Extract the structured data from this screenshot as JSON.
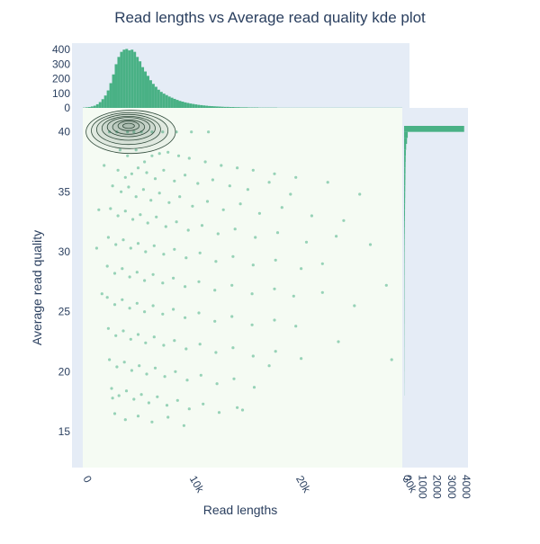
{
  "chart_data": {
    "type": "scatter",
    "title": "Read lengths vs Average read quality kde plot",
    "xlabel": "Read lengths",
    "ylabel": "Average read quality",
    "xlim": [
      0,
      30000
    ],
    "ylim": [
      12,
      42
    ],
    "x_ticks": [
      {
        "value": 0,
        "label": "0"
      },
      {
        "value": 10000,
        "label": "10k"
      },
      {
        "value": 20000,
        "label": "20k"
      },
      {
        "value": 30000,
        "label": "30k"
      }
    ],
    "y_ticks": [
      {
        "value": 15,
        "label": "15"
      },
      {
        "value": 20,
        "label": "20"
      },
      {
        "value": 25,
        "label": "25"
      },
      {
        "value": 30,
        "label": "30"
      },
      {
        "value": 35,
        "label": "35"
      },
      {
        "value": 40,
        "label": "40"
      }
    ],
    "colors": {
      "marker": "#49b185",
      "contour": "#2f4a3a",
      "plot_bg": "#f5fbf3",
      "marginal_bg": "#e5ecf6",
      "text": "#2a3f5f"
    },
    "scatter_points": [
      [
        4200,
        40
      ],
      [
        4800,
        40
      ],
      [
        5500,
        40
      ],
      [
        6500,
        40
      ],
      [
        7500,
        40
      ],
      [
        8800,
        40
      ],
      [
        10200,
        40
      ],
      [
        11800,
        40
      ],
      [
        3200,
        40
      ],
      [
        2500,
        40
      ],
      [
        3500,
        38.5
      ],
      [
        4200,
        38
      ],
      [
        5000,
        38.5
      ],
      [
        5800,
        37.5
      ],
      [
        6500,
        38
      ],
      [
        7200,
        38.2
      ],
      [
        8000,
        38.3
      ],
      [
        9000,
        38
      ],
      [
        10000,
        37.8
      ],
      [
        11500,
        37.5
      ],
      [
        13000,
        37.2
      ],
      [
        14500,
        37
      ],
      [
        16000,
        36.8
      ],
      [
        18000,
        36.5
      ],
      [
        20000,
        36.2
      ],
      [
        3300,
        36.8
      ],
      [
        4000,
        36.2
      ],
      [
        4600,
        36.5
      ],
      [
        5200,
        37
      ],
      [
        6000,
        36.6
      ],
      [
        6800,
        36.1
      ],
      [
        7600,
        36.8
      ],
      [
        8600,
        35.9
      ],
      [
        9600,
        36.4
      ],
      [
        10800,
        35.7
      ],
      [
        12200,
        36
      ],
      [
        13800,
        35.5
      ],
      [
        15500,
        35.2
      ],
      [
        17500,
        35.8
      ],
      [
        19500,
        34.8
      ],
      [
        2800,
        35.5
      ],
      [
        3600,
        35
      ],
      [
        4300,
        35.4
      ],
      [
        5000,
        34.6
      ],
      [
        5700,
        35.2
      ],
      [
        6400,
        34.3
      ],
      [
        7200,
        34.9
      ],
      [
        8100,
        34.1
      ],
      [
        9100,
        34.6
      ],
      [
        10300,
        33.8
      ],
      [
        11700,
        34.2
      ],
      [
        13200,
        33.5
      ],
      [
        14800,
        34
      ],
      [
        16600,
        33.2
      ],
      [
        18700,
        33.7
      ],
      [
        21500,
        33
      ],
      [
        24500,
        32.6
      ],
      [
        2600,
        33.6
      ],
      [
        3300,
        33
      ],
      [
        4000,
        33.4
      ],
      [
        4700,
        32.7
      ],
      [
        5400,
        33.1
      ],
      [
        6100,
        32.4
      ],
      [
        6900,
        32.9
      ],
      [
        7800,
        32.1
      ],
      [
        8800,
        32.5
      ],
      [
        9900,
        31.8
      ],
      [
        11200,
        32.2
      ],
      [
        12700,
        31.5
      ],
      [
        14300,
        31.9
      ],
      [
        16200,
        31.2
      ],
      [
        18300,
        31.6
      ],
      [
        21000,
        30.8
      ],
      [
        23800,
        31.3
      ],
      [
        2400,
        31.2
      ],
      [
        3100,
        30.6
      ],
      [
        3800,
        31
      ],
      [
        4500,
        30.3
      ],
      [
        5200,
        30.7
      ],
      [
        5900,
        30
      ],
      [
        6700,
        30.5
      ],
      [
        7600,
        29.8
      ],
      [
        8600,
        30.2
      ],
      [
        9700,
        29.5
      ],
      [
        11000,
        29.9
      ],
      [
        12500,
        29.2
      ],
      [
        14100,
        29.6
      ],
      [
        16000,
        28.9
      ],
      [
        18100,
        29.3
      ],
      [
        20500,
        28.6
      ],
      [
        22500,
        29
      ],
      [
        2300,
        28.8
      ],
      [
        3000,
        28.2
      ],
      [
        3700,
        28.6
      ],
      [
        4400,
        27.9
      ],
      [
        5100,
        28.3
      ],
      [
        5800,
        27.6
      ],
      [
        6600,
        28.1
      ],
      [
        7500,
        27.4
      ],
      [
        8500,
        27.8
      ],
      [
        9600,
        27.1
      ],
      [
        10900,
        27.5
      ],
      [
        12400,
        26.8
      ],
      [
        14000,
        27.2
      ],
      [
        15900,
        26.5
      ],
      [
        18000,
        26.9
      ],
      [
        19800,
        26.3
      ],
      [
        22500,
        26.6
      ],
      [
        2300,
        26.2
      ],
      [
        3000,
        25.6
      ],
      [
        3700,
        26
      ],
      [
        4400,
        25.3
      ],
      [
        5100,
        25.7
      ],
      [
        5800,
        25
      ],
      [
        6600,
        25.5
      ],
      [
        7500,
        24.8
      ],
      [
        8500,
        25.2
      ],
      [
        9600,
        24.5
      ],
      [
        10900,
        24.9
      ],
      [
        12400,
        24.2
      ],
      [
        14000,
        24.6
      ],
      [
        15900,
        23.9
      ],
      [
        18000,
        24.3
      ],
      [
        20000,
        23.8
      ],
      [
        2400,
        23.6
      ],
      [
        3100,
        23
      ],
      [
        3800,
        23.4
      ],
      [
        4500,
        22.7
      ],
      [
        5200,
        23.1
      ],
      [
        5900,
        22.4
      ],
      [
        6700,
        22.9
      ],
      [
        7600,
        22.2
      ],
      [
        8600,
        22.6
      ],
      [
        9700,
        21.9
      ],
      [
        11000,
        22.3
      ],
      [
        12500,
        21.6
      ],
      [
        14100,
        22
      ],
      [
        16000,
        21.3
      ],
      [
        18100,
        21.7
      ],
      [
        20500,
        21.1
      ],
      [
        2500,
        21
      ],
      [
        3200,
        20.4
      ],
      [
        3900,
        20.8
      ],
      [
        4600,
        20.1
      ],
      [
        5300,
        20.5
      ],
      [
        6000,
        19.8
      ],
      [
        6800,
        20.3
      ],
      [
        7700,
        19.6
      ],
      [
        8700,
        20
      ],
      [
        9800,
        19.3
      ],
      [
        11100,
        19.7
      ],
      [
        12600,
        19
      ],
      [
        14200,
        19.4
      ],
      [
        16100,
        18.7
      ],
      [
        2700,
        18.6
      ],
      [
        3400,
        18
      ],
      [
        4100,
        18.4
      ],
      [
        4800,
        17.7
      ],
      [
        5500,
        18.1
      ],
      [
        6200,
        17.4
      ],
      [
        7000,
        17.9
      ],
      [
        7900,
        17.2
      ],
      [
        8900,
        17.6
      ],
      [
        10000,
        16.9
      ],
      [
        11300,
        17.3
      ],
      [
        12800,
        16.6
      ],
      [
        14500,
        17
      ],
      [
        3000,
        16.5
      ],
      [
        4000,
        16
      ],
      [
        5200,
        16.3
      ],
      [
        6500,
        15.8
      ],
      [
        8000,
        16.2
      ],
      [
        2800,
        17.8
      ],
      [
        9500,
        15.5
      ],
      [
        15000,
        16.8
      ],
      [
        17500,
        20.5
      ],
      [
        26000,
        34.8
      ],
      [
        28500,
        27.2
      ],
      [
        29000,
        21
      ],
      [
        25500,
        25.5
      ],
      [
        24000,
        22.5
      ],
      [
        23000,
        35.8
      ],
      [
        27000,
        30.6
      ],
      [
        2000,
        37.2
      ],
      [
        1500,
        33.5
      ],
      [
        1300,
        30.3
      ],
      [
        1800,
        26.5
      ]
    ],
    "contour_ellipses": [
      {
        "cx": 4500,
        "cy": 40,
        "rx": 4200,
        "ry": 1.8
      },
      {
        "cx": 4400,
        "cy": 40.1,
        "rx": 3600,
        "ry": 1.5
      },
      {
        "cx": 4300,
        "cy": 40.2,
        "rx": 3000,
        "ry": 1.25
      },
      {
        "cx": 4300,
        "cy": 40.3,
        "rx": 2500,
        "ry": 1.0
      },
      {
        "cx": 4300,
        "cy": 40.4,
        "rx": 2000,
        "ry": 0.8
      },
      {
        "cx": 4300,
        "cy": 40.4,
        "rx": 1500,
        "ry": 0.6
      },
      {
        "cx": 4300,
        "cy": 40.5,
        "rx": 1000,
        "ry": 0.4
      },
      {
        "cx": 4300,
        "cy": 40.5,
        "rx": 550,
        "ry": 0.22
      }
    ],
    "x_marginal": {
      "ylim": [
        0,
        420
      ],
      "y_ticks": [
        {
          "value": 0,
          "label": "0"
        },
        {
          "value": 100,
          "label": "100"
        },
        {
          "value": 200,
          "label": "200"
        },
        {
          "value": 300,
          "label": "300"
        },
        {
          "value": 400,
          "label": "400"
        }
      ],
      "bin_width": 250,
      "counts": [
        2,
        4,
        6,
        10,
        15,
        25,
        40,
        60,
        85,
        120,
        170,
        230,
        300,
        350,
        385,
        400,
        405,
        395,
        400,
        385,
        350,
        320,
        280,
        250,
        220,
        190,
        165,
        145,
        125,
        110,
        98,
        88,
        78,
        70,
        62,
        55,
        48,
        43,
        38,
        34,
        30,
        27,
        24,
        21,
        19,
        17,
        15,
        13,
        12,
        11,
        10,
        9,
        8,
        7,
        7,
        6,
        6,
        5,
        5,
        4,
        4,
        4,
        3,
        3,
        3,
        3,
        2,
        2,
        2,
        2,
        2,
        2,
        2,
        1,
        1,
        1,
        1,
        1,
        1,
        1,
        1,
        1,
        1,
        1,
        1,
        1,
        1,
        1,
        1,
        1,
        1,
        1,
        1,
        1,
        1,
        1,
        1,
        1,
        1,
        1,
        1,
        1,
        1,
        1,
        1,
        1,
        1,
        1,
        1,
        1,
        1,
        1,
        1,
        1,
        1,
        1,
        1,
        1,
        1,
        1
      ]
    },
    "y_marginal": {
      "xlim": [
        0,
        4300
      ],
      "x_ticks": [
        {
          "value": 0,
          "label": "0"
        },
        {
          "value": 1000,
          "label": "1000"
        },
        {
          "value": 2000,
          "label": "2000"
        },
        {
          "value": 3000,
          "label": "3000"
        },
        {
          "value": 4000,
          "label": "4000"
        }
      ],
      "bins": [
        {
          "y0": 40,
          "y1": 40.5,
          "count": 4100
        },
        {
          "y0": 39.5,
          "y1": 40,
          "count": 250
        },
        {
          "y0": 39,
          "y1": 39.5,
          "count": 200
        },
        {
          "y0": 38.5,
          "y1": 39,
          "count": 140
        },
        {
          "y0": 38,
          "y1": 38.5,
          "count": 120
        },
        {
          "y0": 37.5,
          "y1": 38,
          "count": 110
        },
        {
          "y0": 37,
          "y1": 37.5,
          "count": 100
        },
        {
          "y0": 36.5,
          "y1": 37,
          "count": 95
        },
        {
          "y0": 36,
          "y1": 36.5,
          "count": 90
        },
        {
          "y0": 35.5,
          "y1": 36,
          "count": 85
        },
        {
          "y0": 35,
          "y1": 35.5,
          "count": 80
        },
        {
          "y0": 34.5,
          "y1": 35,
          "count": 75
        },
        {
          "y0": 34,
          "y1": 34.5,
          "count": 70
        },
        {
          "y0": 33.5,
          "y1": 34,
          "count": 65
        },
        {
          "y0": 33,
          "y1": 33.5,
          "count": 60
        },
        {
          "y0": 32.5,
          "y1": 33,
          "count": 55
        },
        {
          "y0": 32,
          "y1": 32.5,
          "count": 50
        },
        {
          "y0": 31.5,
          "y1": 32,
          "count": 45
        },
        {
          "y0": 31,
          "y1": 31.5,
          "count": 40
        },
        {
          "y0": 30.5,
          "y1": 31,
          "count": 36
        },
        {
          "y0": 30,
          "y1": 30.5,
          "count": 33
        },
        {
          "y0": 29,
          "y1": 30,
          "count": 30
        },
        {
          "y0": 28,
          "y1": 29,
          "count": 28
        },
        {
          "y0": 27,
          "y1": 28,
          "count": 26
        },
        {
          "y0": 26,
          "y1": 27,
          "count": 24
        },
        {
          "y0": 25,
          "y1": 26,
          "count": 22
        },
        {
          "y0": 24,
          "y1": 25,
          "count": 20
        },
        {
          "y0": 23,
          "y1": 24,
          "count": 18
        },
        {
          "y0": 22,
          "y1": 23,
          "count": 16
        },
        {
          "y0": 21,
          "y1": 22,
          "count": 14
        },
        {
          "y0": 20,
          "y1": 21,
          "count": 12
        },
        {
          "y0": 19,
          "y1": 20,
          "count": 10
        },
        {
          "y0": 18,
          "y1": 19,
          "count": 8
        }
      ]
    }
  }
}
